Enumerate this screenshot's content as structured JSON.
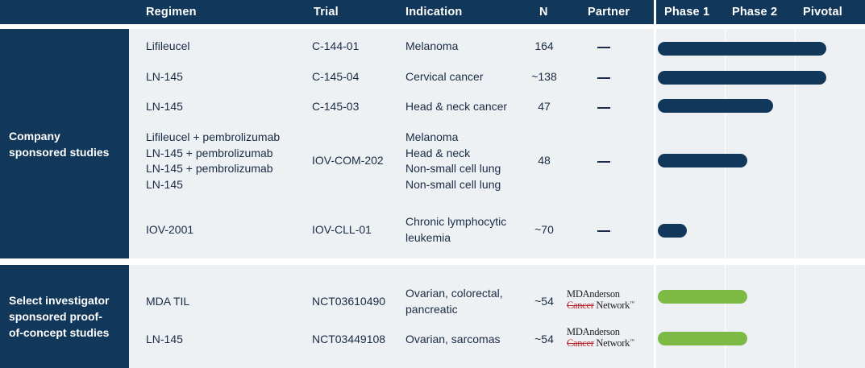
{
  "headers": {
    "regimen": "Regimen",
    "trial": "Trial",
    "indication": "Indication",
    "n": "N",
    "partner": "Partner",
    "phase1": "Phase 1",
    "phase2": "Phase 2",
    "pivotal": "Pivotal"
  },
  "groups": [
    {
      "label_lines": [
        "Company",
        "sponsored studies"
      ]
    },
    {
      "label_lines": [
        "Select investigator",
        "sponsored proof-",
        "of-concept studies"
      ]
    }
  ],
  "rows": [
    {
      "regimen": [
        "Lifileucel"
      ],
      "trial": "C-144-01",
      "indication": [
        "Melanoma"
      ],
      "n": "164",
      "partner": "—",
      "stage": "pivotal",
      "progress": 0.98,
      "bar_color": "#11375a"
    },
    {
      "regimen": [
        "LN-145"
      ],
      "trial": "C-145-04",
      "indication": [
        "Cervical cancer"
      ],
      "n": "~138",
      "partner": "—",
      "stage": "pivotal",
      "progress": 0.98,
      "bar_color": "#11375a"
    },
    {
      "regimen": [
        "LN-145"
      ],
      "trial": "C-145-03",
      "indication": [
        "Head & neck cancer"
      ],
      "n": "47",
      "partner": "—",
      "stage": "pivotal",
      "progress": 0.67,
      "bar_color": "#11375a"
    },
    {
      "regimen": [
        "Lifileucel + pembrolizumab",
        "LN-145 + pembrolizumab",
        "LN-145 + pembrolizumab",
        "LN-145"
      ],
      "trial": "IOV-COM-202",
      "indication": [
        "Melanoma",
        "Head & neck",
        "Non-small cell lung",
        "Non-small cell lung"
      ],
      "n": "48",
      "partner": "—",
      "stage": "phase2",
      "progress": 0.52,
      "bar_color": "#11375a"
    },
    {
      "regimen": [
        "IOV-2001"
      ],
      "trial": "IOV-CLL-01",
      "indication": [
        "Chronic lymphocytic",
        "leukemia"
      ],
      "n": "~70",
      "partner": "—",
      "stage": "phase1",
      "progress": 0.17,
      "bar_color": "#11375a"
    },
    {
      "regimen": [
        "MDA TIL"
      ],
      "trial": "NCT03610490",
      "indication": [
        "Ovarian, colorectal,",
        "pancreatic"
      ],
      "n": "~54",
      "partner_logo": {
        "line1": "MDAnderson",
        "line2_strike": "Cancer",
        "line2_rest": " Network",
        "tm": "™"
      },
      "stage": "phase2",
      "progress": 0.52,
      "bar_color": "#7dba45"
    },
    {
      "regimen": [
        "LN-145"
      ],
      "trial": "NCT03449108",
      "indication": [
        "Ovarian, sarcomas"
      ],
      "n": "~54",
      "partner_logo": {
        "line1": "MDAnderson",
        "line2_strike": "Cancer",
        "line2_rest": " Network",
        "tm": "™"
      },
      "stage": "phase2",
      "progress": 0.52,
      "bar_color": "#7dba45"
    }
  ]
}
